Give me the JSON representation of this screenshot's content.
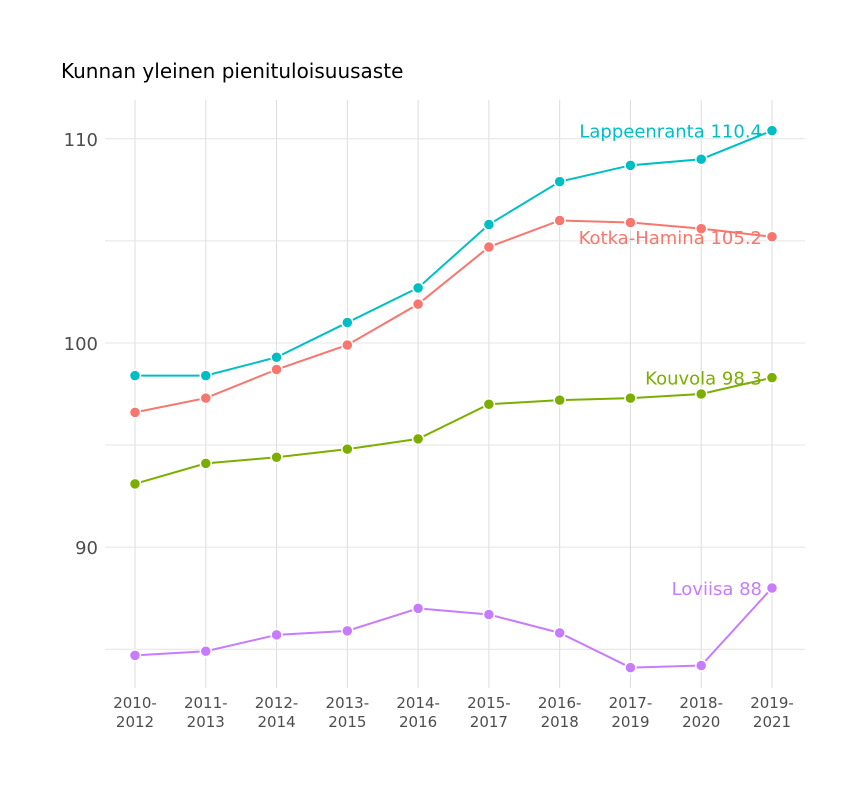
{
  "chart_data": {
    "type": "line",
    "title": "Kunnan yleinen pienituloisuusaste",
    "xlabel": "",
    "ylabel": "",
    "categories": [
      "2010-\n2012",
      "2011-\n2013",
      "2012-\n2014",
      "2013-\n2015",
      "2014-\n2016",
      "2015-\n2017",
      "2016-\n2018",
      "2017-\n2019",
      "2018-\n2020",
      "2019-\n2021"
    ],
    "ylim": [
      83.1,
      111.9
    ],
    "yticks": [
      90,
      100,
      110
    ],
    "grid": true,
    "legend": "none (end-of-line labels)",
    "series": [
      {
        "name": "Lappeenranta",
        "label": "Lappeenranta 110.4",
        "color": "#00BFC4",
        "values": [
          98.4,
          98.4,
          99.3,
          101.0,
          102.7,
          105.8,
          107.9,
          108.7,
          109.0,
          110.4
        ]
      },
      {
        "name": "Kotka-Hamina",
        "label": "Kotka-Hamina 105.2",
        "color": "#F8766D",
        "values": [
          96.6,
          97.3,
          98.7,
          99.9,
          101.9,
          104.7,
          106.0,
          105.9,
          105.6,
          105.2
        ]
      },
      {
        "name": "Kouvola",
        "label": "Kouvola 98.3",
        "color": "#7CAE00",
        "values": [
          93.1,
          94.1,
          94.4,
          94.8,
          95.3,
          97.0,
          97.2,
          97.3,
          97.5,
          98.3
        ]
      },
      {
        "name": "Loviisa",
        "label": "Loviisa 88",
        "color": "#C77CFF",
        "values": [
          84.7,
          84.9,
          85.7,
          85.9,
          87.0,
          86.7,
          85.8,
          84.1,
          84.2,
          88.0
        ]
      }
    ]
  }
}
